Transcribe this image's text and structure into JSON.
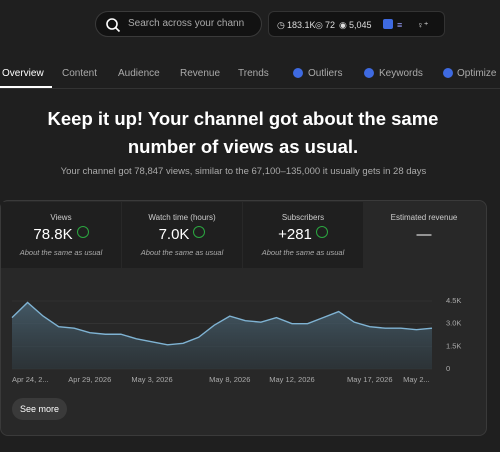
{
  "header": {
    "search_placeholder": "Search across your chann",
    "stats": [
      "183.1K",
      "72",
      "5,045"
    ]
  },
  "tabs": [
    "Overview",
    "Content",
    "Audience",
    "Revenue",
    "Trends",
    "Outliers",
    "Keywords",
    "Optimize"
  ],
  "headline": "Keep it up! Your channel got about the same number of views as usual.",
  "summary": "Your channel got 78,847 views, similar to the 67,100–135,000 it usually gets in 28 days",
  "metrics": [
    {
      "label": "Views",
      "value": "78.8K",
      "note": "About the same as usual"
    },
    {
      "label": "Watch time (hours)",
      "value": "7.0K",
      "note": "About the same as usual"
    },
    {
      "label": "Subscribers",
      "value": "+281",
      "note": "About the same as usual"
    },
    {
      "label": "Estimated revenue",
      "value": "—"
    }
  ],
  "button": "See more",
  "chart_data": {
    "type": "area",
    "categories": [
      "Apr 24, 2...",
      null,
      null,
      null,
      null,
      "Apr 29, 2026",
      null,
      null,
      null,
      "May 3, 2026",
      null,
      null,
      null,
      null,
      "May 8, 2026",
      null,
      null,
      null,
      "May 12, 2026",
      null,
      null,
      null,
      null,
      "May 17, 2026",
      null,
      null,
      "May 2...",
      null
    ],
    "values": [
      3400,
      4400,
      3500,
      2800,
      2700,
      2400,
      2300,
      2300,
      2000,
      1800,
      1600,
      1700,
      2100,
      2900,
      3500,
      3200,
      3100,
      3400,
      3000,
      3000,
      3400,
      3800,
      3100,
      2800,
      2700,
      2700,
      2600,
      2700
    ],
    "color": "#7fb3d3",
    "ylim": [
      0,
      4500
    ],
    "yticks": [
      0,
      {
        "value": 1500,
        "label": "1.5K"
      },
      {
        "value": 3000,
        "label": "3.0K"
      },
      {
        "value": 4500,
        "label": "4.5K"
      }
    ],
    "grid": true
  }
}
